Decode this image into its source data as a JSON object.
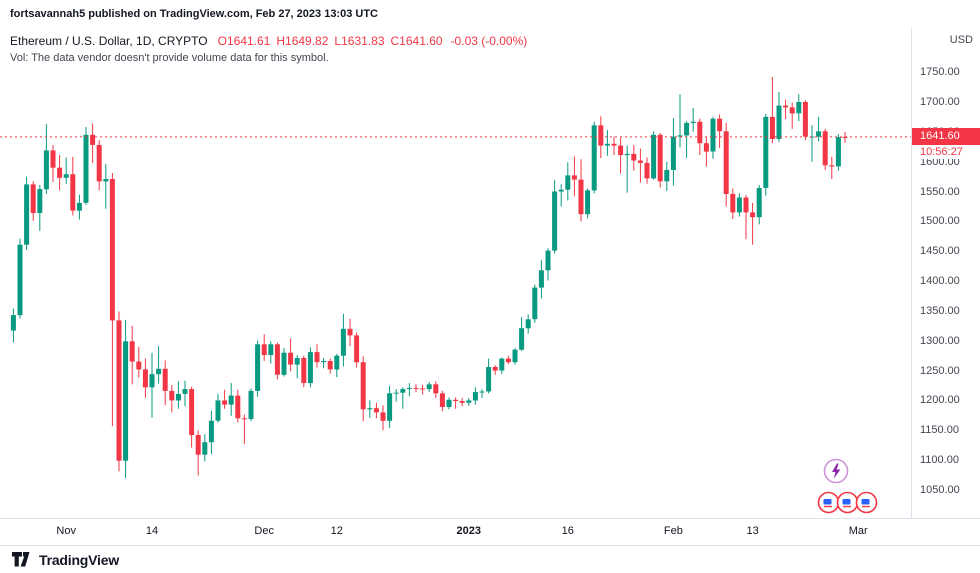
{
  "publish_bar": {
    "text": "fortsavannah5 published on TradingView.com, Feb 27, 2023 13:03 UTC"
  },
  "legend": {
    "symbol": "Ethereum / U.S. Dollar, 1D, CRYPTO",
    "o_label": "O",
    "o_value": "1641.61",
    "h_label": "H",
    "h_value": "1649.82",
    "l_label": "L",
    "l_value": "1631.83",
    "c_label": "C",
    "c_value": "1641.60",
    "change": "-0.03 (-0.00%)",
    "vol_text": "Vol: The data vendor doesn't provide volume data for this symbol."
  },
  "price_axis": {
    "currency": "USD",
    "labels": [
      "1750.00",
      "1700.00",
      "1650.00",
      "1600.00",
      "1550.00",
      "1500.00",
      "1450.00",
      "1400.00",
      "1350.00",
      "1300.00",
      "1250.00",
      "1200.00",
      "1150.00",
      "1100.00",
      "1050.00"
    ],
    "current_price": "1641.60",
    "countdown": "10:56:27"
  },
  "time_axis": {
    "labels": [
      {
        "text": "Nov",
        "index": 8
      },
      {
        "text": "14",
        "index": 21
      },
      {
        "text": "Dec",
        "index": 38
      },
      {
        "text": "12",
        "index": 49
      },
      {
        "text": "2023",
        "index": 69,
        "bold": true
      },
      {
        "text": "16",
        "index": 84
      },
      {
        "text": "Feb",
        "index": 100
      },
      {
        "text": "13",
        "index": 112
      },
      {
        "text": "Mar",
        "index": 128
      }
    ]
  },
  "footer": {
    "brand": "TradingView"
  },
  "icons": {
    "reactions": [
      "lightning-bolt-reaction",
      "emoji-reaction",
      "emoji-reaction",
      "emoji-reaction"
    ]
  },
  "colors": {
    "up": "#089981",
    "down": "#f23645",
    "accent_red": "#f23645",
    "axis_text": "#434651",
    "grid_border": "#e0e3eb"
  },
  "chart_data": {
    "type": "candlestick",
    "title": "Ethereum / U.S. Dollar, 1D, CRYPTO",
    "symbol": "ETHUSD",
    "interval": "1D",
    "start_date": "2022-10-24",
    "end_date": "2023-02-27",
    "price_axis_range": [
      1003,
      1824
    ],
    "current_price": 1641.6,
    "last_bar": {
      "open": 1641.61,
      "high": 1649.82,
      "low": 1631.83,
      "close": 1641.6,
      "change": -0.03,
      "change_pct": "-0.00%"
    },
    "candles": [
      [
        1317,
        1354,
        1297,
        1343
      ],
      [
        1343,
        1471,
        1337,
        1461
      ],
      [
        1461,
        1575,
        1452,
        1562
      ],
      [
        1562,
        1567,
        1501,
        1514
      ],
      [
        1514,
        1561,
        1484,
        1554
      ],
      [
        1554,
        1663,
        1546,
        1619
      ],
      [
        1619,
        1628,
        1566,
        1590
      ],
      [
        1590,
        1611,
        1552,
        1573
      ],
      [
        1573,
        1607,
        1563,
        1579
      ],
      [
        1579,
        1608,
        1510,
        1518
      ],
      [
        1518,
        1545,
        1503,
        1531
      ],
      [
        1531,
        1658,
        1528,
        1645
      ],
      [
        1645,
        1664,
        1598,
        1628
      ],
      [
        1628,
        1636,
        1552,
        1567
      ],
      [
        1567,
        1596,
        1521,
        1571
      ],
      [
        1571,
        1581,
        1157,
        1334
      ],
      [
        1334,
        1349,
        1081,
        1099
      ],
      [
        1099,
        1335,
        1070,
        1299
      ],
      [
        1299,
        1325,
        1227,
        1265
      ],
      [
        1265,
        1290,
        1238,
        1252
      ],
      [
        1252,
        1270,
        1204,
        1222
      ],
      [
        1222,
        1280,
        1171,
        1244
      ],
      [
        1244,
        1291,
        1228,
        1253
      ],
      [
        1253,
        1267,
        1192,
        1216
      ],
      [
        1216,
        1226,
        1180,
        1200
      ],
      [
        1200,
        1232,
        1186,
        1211
      ],
      [
        1211,
        1233,
        1190,
        1219
      ],
      [
        1219,
        1223,
        1121,
        1142
      ],
      [
        1142,
        1150,
        1074,
        1109
      ],
      [
        1109,
        1143,
        1098,
        1130
      ],
      [
        1130,
        1183,
        1110,
        1166
      ],
      [
        1166,
        1211,
        1163,
        1200
      ],
      [
        1200,
        1218,
        1186,
        1193
      ],
      [
        1193,
        1229,
        1174,
        1208
      ],
      [
        1208,
        1218,
        1163,
        1170
      ],
      [
        1170,
        1176,
        1127,
        1169
      ],
      [
        1169,
        1220,
        1165,
        1216
      ],
      [
        1216,
        1300,
        1206,
        1294
      ],
      [
        1294,
        1311,
        1266,
        1276
      ],
      [
        1276,
        1299,
        1262,
        1294
      ],
      [
        1294,
        1297,
        1235,
        1243
      ],
      [
        1243,
        1288,
        1240,
        1280
      ],
      [
        1280,
        1304,
        1249,
        1260
      ],
      [
        1260,
        1276,
        1237,
        1271
      ],
      [
        1271,
        1275,
        1222,
        1229
      ],
      [
        1229,
        1289,
        1222,
        1281
      ],
      [
        1281,
        1294,
        1255,
        1264
      ],
      [
        1264,
        1271,
        1254,
        1266
      ],
      [
        1266,
        1270,
        1245,
        1252
      ],
      [
        1252,
        1278,
        1239,
        1275
      ],
      [
        1275,
        1345,
        1257,
        1320
      ],
      [
        1320,
        1337,
        1291,
        1309
      ],
      [
        1309,
        1314,
        1255,
        1264
      ],
      [
        1264,
        1274,
        1165,
        1185
      ],
      [
        1185,
        1200,
        1171,
        1187
      ],
      [
        1187,
        1196,
        1170,
        1180
      ],
      [
        1180,
        1192,
        1150,
        1166
      ],
      [
        1166,
        1224,
        1154,
        1212
      ],
      [
        1212,
        1219,
        1198,
        1213
      ],
      [
        1213,
        1222,
        1186,
        1219
      ],
      [
        1219,
        1229,
        1207,
        1221
      ],
      [
        1221,
        1227,
        1214,
        1220
      ],
      [
        1220,
        1226,
        1210,
        1219
      ],
      [
        1219,
        1231,
        1214,
        1227
      ],
      [
        1227,
        1232,
        1204,
        1212
      ],
      [
        1212,
        1216,
        1182,
        1189
      ],
      [
        1189,
        1205,
        1185,
        1201
      ],
      [
        1201,
        1205,
        1186,
        1199
      ],
      [
        1199,
        1204,
        1190,
        1196
      ],
      [
        1196,
        1204,
        1191,
        1200
      ],
      [
        1200,
        1222,
        1193,
        1214
      ],
      [
        1214,
        1219,
        1204,
        1215
      ],
      [
        1215,
        1270,
        1212,
        1256
      ],
      [
        1256,
        1259,
        1243,
        1250
      ],
      [
        1250,
        1272,
        1244,
        1270
      ],
      [
        1270,
        1275,
        1261,
        1264
      ],
      [
        1264,
        1288,
        1260,
        1285
      ],
      [
        1285,
        1340,
        1283,
        1321
      ],
      [
        1321,
        1344,
        1312,
        1336
      ],
      [
        1336,
        1394,
        1330,
        1389
      ],
      [
        1389,
        1435,
        1371,
        1418
      ],
      [
        1418,
        1455,
        1401,
        1451
      ],
      [
        1451,
        1569,
        1446,
        1550
      ],
      [
        1550,
        1562,
        1525,
        1553
      ],
      [
        1553,
        1599,
        1535,
        1577
      ],
      [
        1577,
        1609,
        1542,
        1570
      ],
      [
        1570,
        1604,
        1500,
        1512
      ],
      [
        1512,
        1555,
        1505,
        1552
      ],
      [
        1552,
        1667,
        1547,
        1661
      ],
      [
        1661,
        1676,
        1606,
        1627
      ],
      [
        1627,
        1653,
        1610,
        1630
      ],
      [
        1630,
        1642,
        1611,
        1627
      ],
      [
        1627,
        1640,
        1580,
        1611
      ],
      [
        1611,
        1627,
        1548,
        1613
      ],
      [
        1613,
        1628,
        1585,
        1602
      ],
      [
        1602,
        1622,
        1565,
        1598
      ],
      [
        1598,
        1607,
        1563,
        1572
      ],
      [
        1572,
        1651,
        1570,
        1645
      ],
      [
        1645,
        1648,
        1557,
        1567
      ],
      [
        1567,
        1600,
        1551,
        1586
      ],
      [
        1586,
        1673,
        1560,
        1642
      ],
      [
        1642,
        1713,
        1624,
        1644
      ],
      [
        1644,
        1668,
        1606,
        1665
      ],
      [
        1665,
        1690,
        1650,
        1667
      ],
      [
        1667,
        1672,
        1611,
        1631
      ],
      [
        1631,
        1641,
        1592,
        1617
      ],
      [
        1617,
        1675,
        1605,
        1672
      ],
      [
        1672,
        1679,
        1623,
        1651
      ],
      [
        1651,
        1665,
        1525,
        1546
      ],
      [
        1546,
        1555,
        1504,
        1515
      ],
      [
        1515,
        1547,
        1508,
        1540
      ],
      [
        1540,
        1544,
        1470,
        1515
      ],
      [
        1515,
        1531,
        1461,
        1507
      ],
      [
        1507,
        1561,
        1495,
        1556
      ],
      [
        1556,
        1680,
        1543,
        1675
      ],
      [
        1675,
        1742,
        1631,
        1638
      ],
      [
        1638,
        1717,
        1633,
        1694
      ],
      [
        1694,
        1704,
        1671,
        1691
      ],
      [
        1691,
        1699,
        1655,
        1681
      ],
      [
        1681,
        1713,
        1668,
        1700
      ],
      [
        1700,
        1703,
        1636,
        1642
      ],
      [
        1642,
        1661,
        1600,
        1642
      ],
      [
        1642,
        1675,
        1634,
        1651
      ],
      [
        1651,
        1655,
        1586,
        1594
      ],
      [
        1594,
        1608,
        1571,
        1592
      ],
      [
        1592,
        1646,
        1585,
        1641
      ],
      [
        1641.61,
        1649.82,
        1631.83,
        1641.6
      ]
    ]
  }
}
